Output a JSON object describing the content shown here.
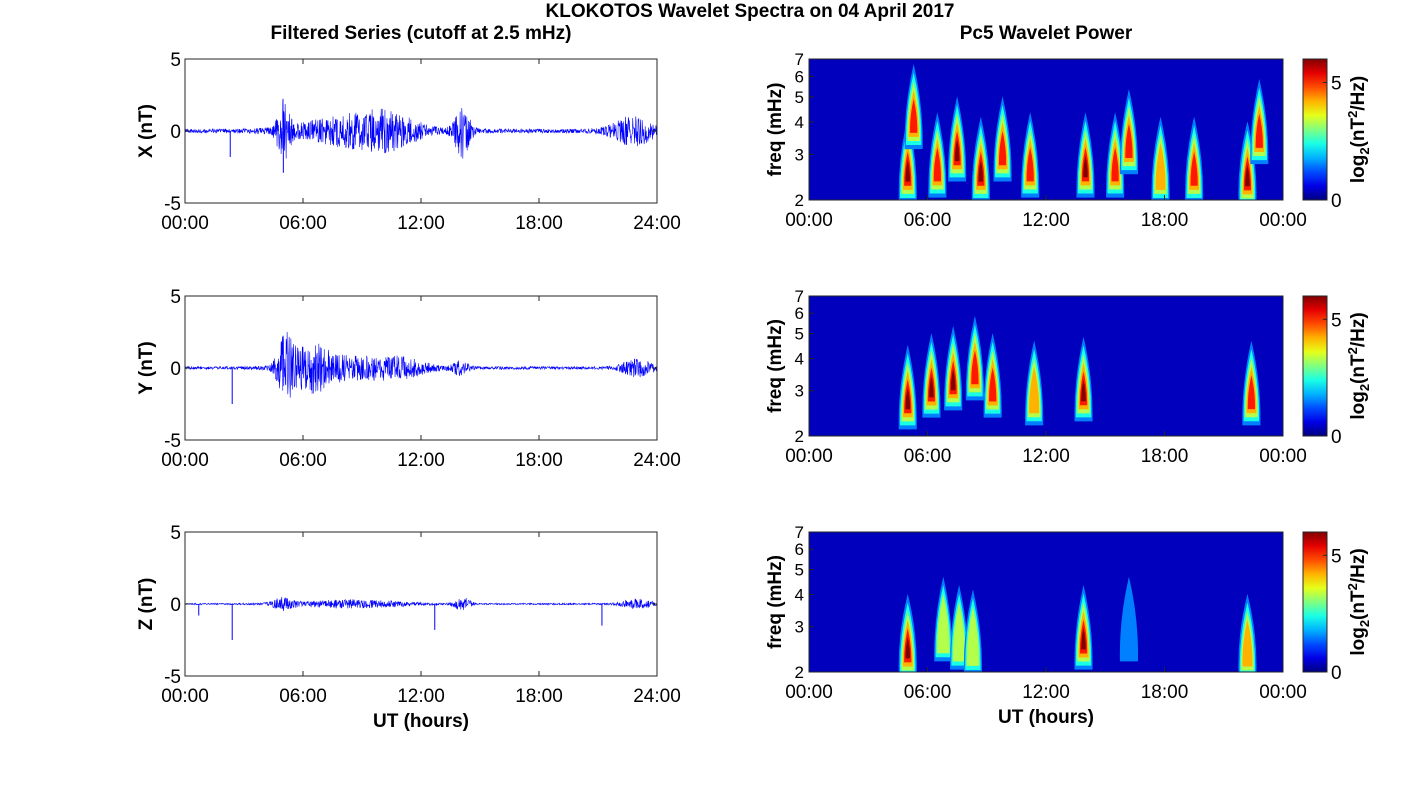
{
  "figure": {
    "title": "KLOKOTOS Wavelet Spectra on 04 April 2017",
    "left_column_title": "Filtered Series (cutoff at 2.5 mHz)",
    "right_column_title": "Pc5 Wavelet Power",
    "xlabel_bottom": "UT (hours)"
  },
  "chart_data": [
    {
      "type": "line",
      "title": "Filtered Series (cutoff at 2.5 mHz)",
      "ylabel": "X (nT)",
      "xlabel": "",
      "ylim": [
        -5,
        5
      ],
      "yticks": [
        "5",
        "0",
        "-5"
      ],
      "xlim_hours": [
        0,
        24
      ],
      "xticks": [
        "00:00",
        "06:00",
        "12:00",
        "18:00",
        "24:00"
      ],
      "line_color": "#0000ff",
      "baseline": 0,
      "noise_amplitude": 0.15,
      "activity_bursts": [
        {
          "center_hour": 5.0,
          "width_hours": 0.25,
          "peak_nT": 2.4
        },
        {
          "center_hour": 8.5,
          "width_hours": 2.0,
          "peak_nT": 1.3
        },
        {
          "center_hour": 10.5,
          "width_hours": 1.0,
          "peak_nT": 0.9
        },
        {
          "center_hour": 14.1,
          "width_hours": 0.3,
          "peak_nT": 2.3
        },
        {
          "center_hour": 22.8,
          "width_hours": 0.8,
          "peak_nT": 1.2
        }
      ],
      "spikes": [
        {
          "hour": 2.3,
          "value_nT": -1.8
        },
        {
          "hour": 5.0,
          "value_nT": -2.9
        }
      ]
    },
    {
      "type": "line",
      "ylabel": "Y (nT)",
      "xlabel": "",
      "ylim": [
        -5,
        5
      ],
      "yticks": [
        "5",
        "0",
        "-5"
      ],
      "xlim_hours": [
        0,
        24
      ],
      "xticks": [
        "00:00",
        "06:00",
        "12:00",
        "18:00",
        "24:00"
      ],
      "line_color": "#0000ff",
      "baseline": 0,
      "noise_amplitude": 0.1,
      "activity_bursts": [
        {
          "center_hour": 5.1,
          "width_hours": 0.3,
          "peak_nT": 2.6
        },
        {
          "center_hour": 6.4,
          "width_hours": 0.8,
          "peak_nT": 1.7
        },
        {
          "center_hour": 8.5,
          "width_hours": 1.8,
          "peak_nT": 0.9
        },
        {
          "center_hour": 11.0,
          "width_hours": 1.0,
          "peak_nT": 0.6
        },
        {
          "center_hour": 14.0,
          "width_hours": 0.3,
          "peak_nT": 0.6
        },
        {
          "center_hour": 23.0,
          "width_hours": 0.6,
          "peak_nT": 0.7
        }
      ],
      "spikes": [
        {
          "hour": 2.4,
          "value_nT": -2.5
        }
      ]
    },
    {
      "type": "line",
      "ylabel": "Z (nT)",
      "xlabel": "UT (hours)",
      "ylim": [
        -5,
        5
      ],
      "yticks": [
        "5",
        "0",
        "-5"
      ],
      "xlim_hours": [
        0,
        24
      ],
      "xticks": [
        "00:00",
        "06:00",
        "12:00",
        "18:00",
        "24:00"
      ],
      "line_color": "#0000ff",
      "baseline": 0,
      "noise_amplitude": 0.05,
      "activity_bursts": [
        {
          "center_hour": 5.0,
          "width_hours": 0.4,
          "peak_nT": 0.5
        },
        {
          "center_hour": 8.5,
          "width_hours": 2.0,
          "peak_nT": 0.35
        },
        {
          "center_hour": 14.1,
          "width_hours": 0.3,
          "peak_nT": 0.6
        },
        {
          "center_hour": 23.0,
          "width_hours": 0.6,
          "peak_nT": 0.4
        }
      ],
      "spikes": [
        {
          "hour": 2.4,
          "value_nT": -2.5
        },
        {
          "hour": 12.7,
          "value_nT": -1.8
        },
        {
          "hour": 21.2,
          "value_nT": -1.5
        },
        {
          "hour": 0.7,
          "value_nT": -0.8
        }
      ]
    },
    {
      "type": "heatmap",
      "title": "Pc5 Wavelet Power",
      "ylabel": "freq (mHz)",
      "xlabel": "",
      "yscale": "log",
      "ylim_mHz": [
        2,
        7
      ],
      "yticks": [
        "2",
        "3",
        "4",
        "5",
        "6",
        "7"
      ],
      "xlim_hours": [
        0,
        24
      ],
      "xticks": [
        "00:00",
        "06:00",
        "12:00",
        "18:00",
        "00:00"
      ],
      "colormap": "jet",
      "clim": [
        0,
        6
      ],
      "colorbar_label": "log2(nT2/Hz)",
      "colorbar_ticks": [
        "0",
        "5"
      ],
      "hotspots": [
        {
          "hour": 5.0,
          "freq_mHz": 2.5,
          "power": 6.0
        },
        {
          "hour": 5.3,
          "freq_mHz": 4.0,
          "power": 5.5
        },
        {
          "hour": 6.5,
          "freq_mHz": 2.6,
          "power": 5.5
        },
        {
          "hour": 7.5,
          "freq_mHz": 3.0,
          "power": 6.0
        },
        {
          "hour": 8.7,
          "freq_mHz": 2.5,
          "power": 6.0
        },
        {
          "hour": 9.8,
          "freq_mHz": 3.0,
          "power": 5.2
        },
        {
          "hour": 11.2,
          "freq_mHz": 2.6,
          "power": 5.0
        },
        {
          "hour": 14.0,
          "freq_mHz": 2.6,
          "power": 6.0
        },
        {
          "hour": 15.5,
          "freq_mHz": 2.6,
          "power": 5.0
        },
        {
          "hour": 16.2,
          "freq_mHz": 3.2,
          "power": 5.0
        },
        {
          "hour": 17.8,
          "freq_mHz": 2.5,
          "power": 4.8
        },
        {
          "hour": 19.5,
          "freq_mHz": 2.5,
          "power": 5.0
        },
        {
          "hour": 22.2,
          "freq_mHz": 2.4,
          "power": 6.0
        },
        {
          "hour": 22.8,
          "freq_mHz": 3.5,
          "power": 5.5
        }
      ]
    },
    {
      "type": "heatmap",
      "ylabel": "freq (mHz)",
      "xlabel": "",
      "yscale": "log",
      "ylim_mHz": [
        2,
        7
      ],
      "yticks": [
        "2",
        "3",
        "4",
        "5",
        "6",
        "7"
      ],
      "xlim_hours": [
        0,
        24
      ],
      "xticks": [
        "00:00",
        "06:00",
        "12:00",
        "18:00",
        "00:00"
      ],
      "colormap": "jet",
      "clim": [
        0,
        6
      ],
      "colorbar_label": "log2(nT2/Hz)",
      "colorbar_ticks": [
        "0",
        "5"
      ],
      "hotspots": [
        {
          "hour": 5.0,
          "freq_mHz": 2.7,
          "power": 6.0
        },
        {
          "hour": 6.2,
          "freq_mHz": 3.0,
          "power": 5.8
        },
        {
          "hour": 7.3,
          "freq_mHz": 3.2,
          "power": 5.8
        },
        {
          "hour": 8.4,
          "freq_mHz": 3.5,
          "power": 5.5
        },
        {
          "hour": 9.3,
          "freq_mHz": 3.0,
          "power": 5.0
        },
        {
          "hour": 11.4,
          "freq_mHz": 2.8,
          "power": 4.5
        },
        {
          "hour": 13.9,
          "freq_mHz": 2.9,
          "power": 5.8
        },
        {
          "hour": 22.4,
          "freq_mHz": 2.8,
          "power": 5.5
        }
      ]
    },
    {
      "type": "heatmap",
      "ylabel": "freq (mHz)",
      "xlabel": "UT (hours)",
      "yscale": "log",
      "ylim_mHz": [
        2,
        7
      ],
      "yticks": [
        "2",
        "3",
        "4",
        "5",
        "6",
        "7"
      ],
      "xlim_hours": [
        0,
        24
      ],
      "xticks": [
        "00:00",
        "06:00",
        "12:00",
        "18:00",
        "00:00"
      ],
      "colormap": "jet",
      "clim": [
        0,
        6
      ],
      "colorbar_label": "log2(nT2/Hz)",
      "colorbar_ticks": [
        "0",
        "5"
      ],
      "hotspots": [
        {
          "hour": 5.0,
          "freq_mHz": 2.4,
          "power": 6.0
        },
        {
          "hour": 6.8,
          "freq_mHz": 2.8,
          "power": 3.0
        },
        {
          "hour": 7.6,
          "freq_mHz": 2.6,
          "power": 3.2
        },
        {
          "hour": 8.3,
          "freq_mHz": 2.5,
          "power": 3.0
        },
        {
          "hour": 13.9,
          "freq_mHz": 2.6,
          "power": 6.0
        },
        {
          "hour": 16.2,
          "freq_mHz": 2.8,
          "power": 2.0
        },
        {
          "hour": 22.2,
          "freq_mHz": 2.4,
          "power": 4.2
        }
      ]
    }
  ]
}
